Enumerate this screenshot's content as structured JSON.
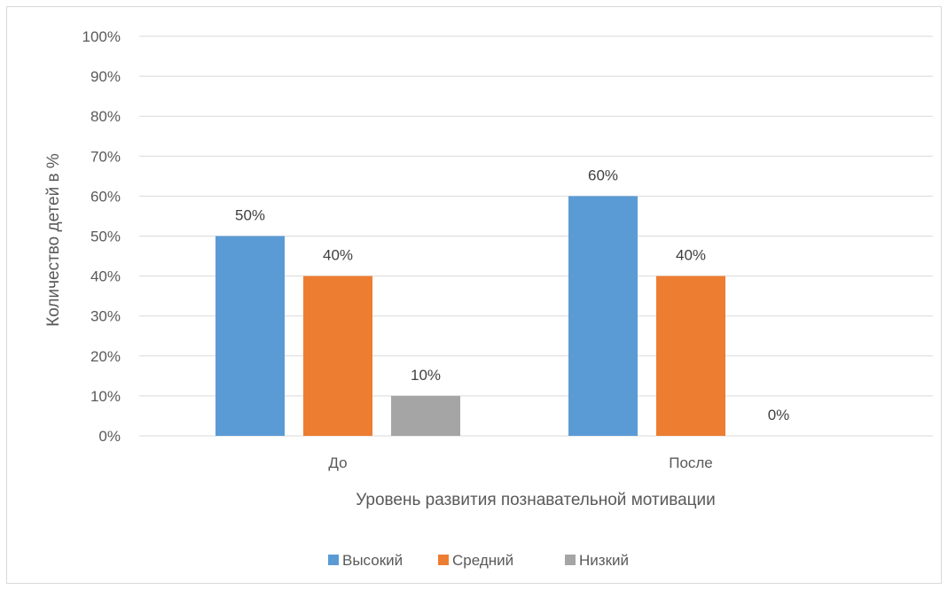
{
  "chart_data": {
    "type": "bar",
    "title": "",
    "categories": [
      "До",
      "После"
    ],
    "series": [
      {
        "name": "Высокий",
        "color": "#5b9bd5",
        "values": [
          50,
          60
        ],
        "labels": [
          "50%",
          "60%"
        ]
      },
      {
        "name": "Средний",
        "color": "#ed7d31",
        "values": [
          40,
          40
        ],
        "labels": [
          "40%",
          "40%"
        ]
      },
      {
        "name": "Низкий",
        "color": "#a5a5a5",
        "values": [
          10,
          0
        ],
        "labels": [
          "10%",
          "0%"
        ]
      }
    ],
    "xlabel": "Уровень развития познавательной мотивации",
    "ylabel": "Количество детей в %",
    "ylim": [
      0,
      100
    ],
    "yticks": [
      "0%",
      "10%",
      "20%",
      "30%",
      "40%",
      "50%",
      "60%",
      "70%",
      "80%",
      "90%",
      "100%"
    ],
    "grid": true,
    "legend_position": "bottom"
  }
}
